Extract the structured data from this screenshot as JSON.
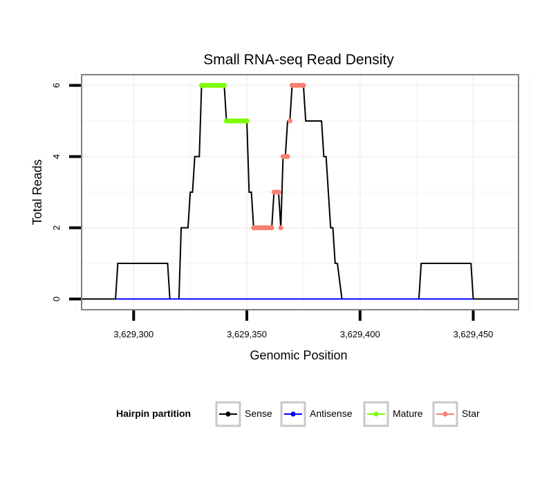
{
  "chart_data": {
    "type": "line",
    "title": "Small RNA-seq Read Density",
    "xlabel": "Genomic Position",
    "ylabel": "Total Reads",
    "xlim": [
      3629277,
      3629470
    ],
    "ylim": [
      -0.3,
      6.3
    ],
    "x_ticks": [
      3629300,
      3629350,
      3629400,
      3629450
    ],
    "x_tick_labels": [
      "3,629,300",
      "3,629,350",
      "3,629,400",
      "3,629,450"
    ],
    "y_ticks": [
      0,
      2,
      4,
      6
    ],
    "y_tick_labels": [
      "0",
      "2",
      "4",
      "6"
    ],
    "grid": true,
    "legend": {
      "title": "Hairpin partition",
      "position": "bottom",
      "entries": [
        "Sense",
        "Antisense",
        "Mature",
        "Star"
      ]
    },
    "series": [
      {
        "name": "Sense",
        "color": "#000000",
        "style": "line",
        "x": [
          3629277,
          3629292,
          3629293,
          3629315,
          3629316,
          3629320,
          3629321,
          3629324,
          3629325,
          3629326,
          3629327,
          3629329,
          3629330,
          3629340,
          3629341,
          3629350,
          3629351,
          3629352,
          3629353,
          3629361,
          3629362,
          3629364,
          3629365,
          3629366,
          3629367,
          3629368,
          3629369,
          3629370,
          3629375,
          3629376,
          3629383,
          3629384,
          3629385,
          3629387,
          3629388,
          3629389,
          3629390,
          3629392,
          3629426,
          3629427,
          3629449,
          3629450,
          3629470
        ],
        "y": [
          0,
          0,
          1,
          1,
          0,
          0,
          2,
          2,
          3,
          3,
          4,
          4,
          6,
          6,
          5,
          5,
          3,
          3,
          2,
          2,
          3,
          3,
          2,
          4,
          4,
          5,
          5,
          6,
          6,
          5,
          5,
          4,
          4,
          2,
          2,
          1,
          1,
          0,
          0,
          1,
          1,
          0,
          0
        ]
      },
      {
        "name": "Antisense",
        "color": "#0000ff",
        "style": "line",
        "x": [
          3629292,
          3629450
        ],
        "y": [
          0,
          0
        ]
      },
      {
        "name": "Mature",
        "color": "#7cfc00",
        "style": "points",
        "x": [
          3629330,
          3629331,
          3629332,
          3629333,
          3629334,
          3629335,
          3629336,
          3629337,
          3629338,
          3629339,
          3629340,
          3629341,
          3629342,
          3629343,
          3629344,
          3629345,
          3629346,
          3629347,
          3629348,
          3629349,
          3629350
        ],
        "y": [
          6,
          6,
          6,
          6,
          6,
          6,
          6,
          6,
          6,
          6,
          6,
          5,
          5,
          5,
          5,
          5,
          5,
          5,
          5,
          5,
          5
        ]
      },
      {
        "name": "Star",
        "color": "#fa8072",
        "style": "points",
        "x": [
          3629353,
          3629354,
          3629355,
          3629356,
          3629357,
          3629358,
          3629359,
          3629360,
          3629361,
          3629362,
          3629363,
          3629364,
          3629365,
          3629366,
          3629367,
          3629368,
          3629369,
          3629370,
          3629371,
          3629372,
          3629373,
          3629374,
          3629375
        ],
        "y": [
          2,
          2,
          2,
          2,
          2,
          2,
          2,
          2,
          2,
          3,
          3,
          3,
          2,
          4,
          4,
          4,
          5,
          6,
          6,
          6,
          6,
          6,
          6
        ]
      }
    ]
  }
}
